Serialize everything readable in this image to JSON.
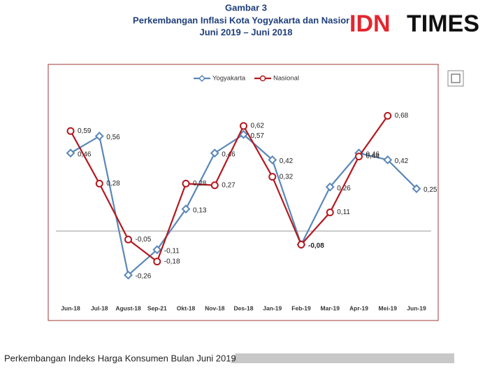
{
  "header": {
    "figure": "Gambar 3",
    "title": "Perkembangan Inflasi Kota Yogyakarta dan Nasional",
    "subtitle": "Juni 2019 – Juni 2018",
    "logo_a": "IDN",
    "logo_b": "TIMES"
  },
  "chart_data": {
    "type": "line",
    "categories": [
      "Jun-18",
      "Jul-18",
      "Agust-18",
      "Sep-21",
      "Okt-18",
      "Nov-18",
      "Des-18",
      "Jan-19",
      "Feb-19",
      "Mar-19",
      "Apr-19",
      "Mei-19",
      "Jun-19"
    ],
    "series": [
      {
        "name": "Yogyakarta",
        "color": "#5a87b8",
        "marker": "diamond",
        "values": [
          0.46,
          0.56,
          -0.26,
          -0.11,
          0.13,
          0.46,
          0.57,
          0.42,
          -0.08,
          0.26,
          0.46,
          0.42,
          0.25
        ],
        "value_labels": [
          "0,46",
          "0,56",
          "-0,26",
          "-0,11",
          "0,13",
          "0,46",
          "0,57",
          "0,42",
          "-0,08",
          "0,26",
          "0,46",
          "0,42",
          "0,25"
        ]
      },
      {
        "name": "Nasional",
        "color": "#b3191f",
        "marker": "circle",
        "values": [
          0.59,
          0.28,
          -0.05,
          -0.18,
          0.28,
          0.27,
          0.62,
          0.32,
          -0.08,
          0.11,
          0.44,
          0.68,
          null
        ],
        "value_labels": [
          "0,59",
          "0,28",
          "-0,05",
          "-0,18",
          "0,28",
          "0,27",
          "0,62",
          "0,32",
          null,
          "0,11",
          "0,44",
          "0,68",
          null
        ]
      }
    ],
    "ylim": [
      -0.4,
      1.0
    ],
    "legend": "top"
  },
  "footer": {
    "text": "Perkembangan Indeks Harga Konsumen Bulan Juni 2019"
  }
}
